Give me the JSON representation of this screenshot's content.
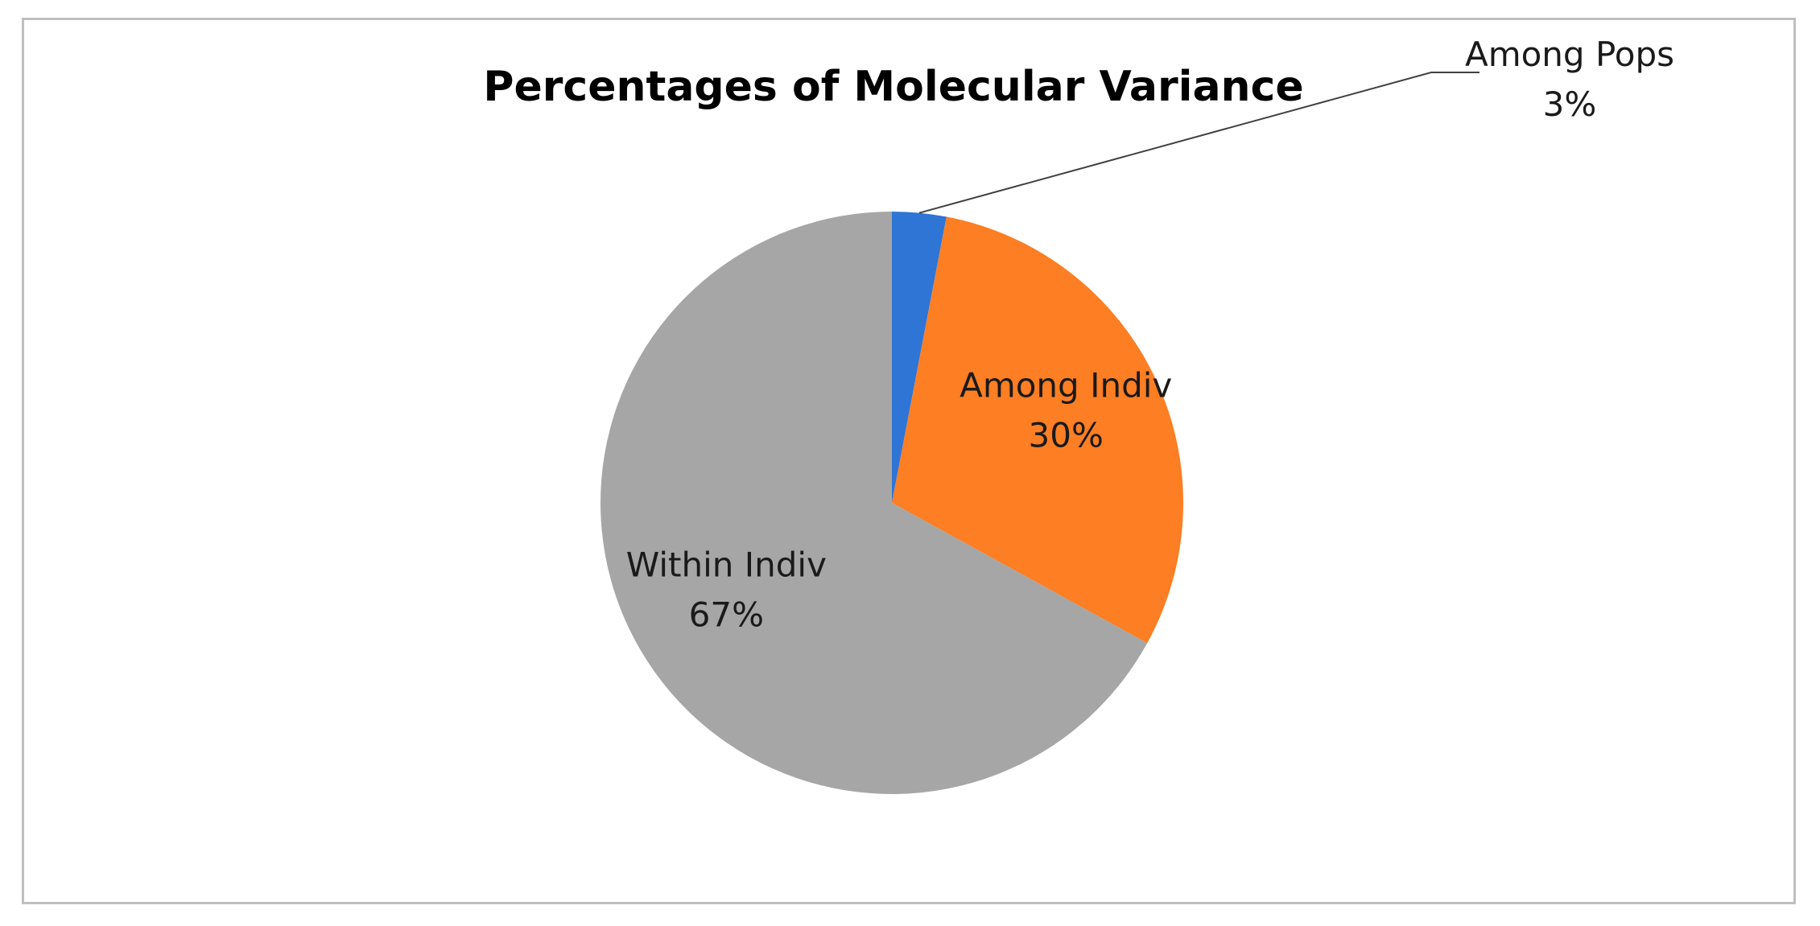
{
  "chart_data": {
    "type": "pie",
    "title": "Percentages of Molecular Variance",
    "start_angle_deg": 0,
    "direction": "clockwise",
    "slices": [
      {
        "label": "Among Pops",
        "value": 3,
        "value_label": "3%",
        "color": "#2e75d6",
        "label_position": "outside-leader"
      },
      {
        "label": "Among Indiv",
        "value": 30,
        "value_label": "30%",
        "color": "#fd7e23",
        "label_position": "inside"
      },
      {
        "label": "Within Indiv",
        "value": 67,
        "value_label": "67%",
        "color": "#a6a6a6",
        "label_position": "inside"
      }
    ],
    "legend": "none"
  }
}
